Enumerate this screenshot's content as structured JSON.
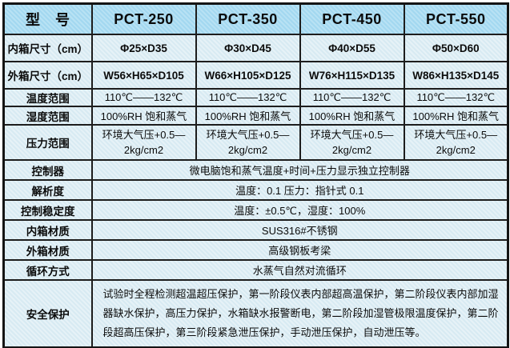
{
  "colors": {
    "header_bg": "#a8dcf2",
    "cell_bg": "#ddedf4",
    "border": "#1d1d1d",
    "text": "#0b0b0b",
    "page_bg": "#ffffff"
  },
  "table": {
    "header": {
      "label": "型　号",
      "models": [
        "PCT-250",
        "PCT-350",
        "PCT-450",
        "PCT-550"
      ]
    },
    "grid_rows": [
      {
        "label": "内箱尺寸（cm）",
        "values": [
          "Φ25×D35",
          "Φ30×D45",
          "Φ40×D55",
          "Φ50×D60"
        ]
      },
      {
        "label": "外箱尺寸（cm）",
        "values": [
          "W56×H65×D105",
          "W66×H105×D125",
          "W76×H115×D135",
          "W86×H135×D145"
        ]
      },
      {
        "label": "温度范围",
        "values": [
          "110℃——132℃",
          "110℃——132℃",
          "110℃——132℃",
          "110℃——132℃"
        ]
      },
      {
        "label": "湿度范围",
        "values": [
          "100%RH 饱和蒸气",
          "100%RH 饱和蒸气",
          "100%RH 饱和蒸气",
          "100%RH 饱和蒸气"
        ]
      },
      {
        "label": "压力范围",
        "values": [
          "环境大气压+0.5—\n2kg/cm2",
          "环境大气压+0.5—\n2kg/cm2",
          "环境大气压+0.5—\n2kg/cm2",
          "环境大气压+0.5—\n2kg/cm2"
        ]
      }
    ],
    "span_rows": [
      {
        "label": "控制器",
        "value": "微电脑饱和蒸气温度+时间+压力显示独立控制器"
      },
      {
        "label": "解析度",
        "value": "温度：0.1 压力：指针式 0.1"
      },
      {
        "label": "控制稳定度",
        "value": "温度：±0.5℃，湿度：100%"
      },
      {
        "label": "内箱材质",
        "value": "SUS316#不锈钢"
      },
      {
        "label": "外箱材质",
        "value": "高级钢板考梁"
      },
      {
        "label": "循环方式",
        "value": "水蒸气自然对流循环"
      },
      {
        "label": "安全保护",
        "value": "试验时全程检测超温超压保护，第一阶段仪表内部超高温保护，第二阶段仪表内部加湿器缺水保护，高压力保护，水箱缺水报警断电，第二阶段加湿管极限温度保护，第二阶段超高压保护，第三阶段紧急泄压保护，手动泄压保护，自动泄压等。"
      }
    ]
  }
}
